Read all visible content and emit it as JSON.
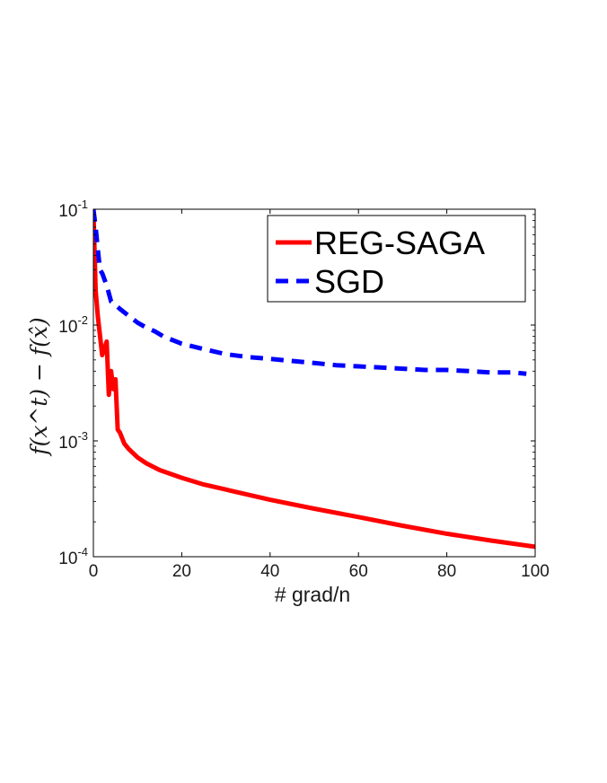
{
  "chart_data": {
    "type": "line",
    "title": "",
    "xlabel": "# grad/n",
    "ylabel": "f(x^t) − f(x̂)",
    "y_scale": "log",
    "xlim": [
      0,
      100
    ],
    "ylim": [
      0.0001,
      0.1
    ],
    "x_ticks": [
      "0",
      "20",
      "40",
      "60",
      "80",
      "100"
    ],
    "y_ticks": [
      {
        "base": "10",
        "exp": "-1",
        "value": 0.1
      },
      {
        "base": "10",
        "exp": "-2",
        "value": 0.01
      },
      {
        "base": "10",
        "exp": "-3",
        "value": 0.001
      },
      {
        "base": "10",
        "exp": "-4",
        "value": 0.0001
      }
    ],
    "grid": false,
    "legend_position": "top-right",
    "series": [
      {
        "name": "REG-SAGA",
        "color": "#ff0000",
        "style": "solid",
        "x": [
          0,
          0.5,
          1,
          2,
          3,
          3.5,
          4,
          4.5,
          5,
          5.5,
          6,
          7,
          8,
          10,
          12,
          15,
          20,
          25,
          30,
          40,
          50,
          60,
          70,
          80,
          90,
          100
        ],
        "y": [
          0.1,
          0.02,
          0.012,
          0.0055,
          0.0072,
          0.0025,
          0.004,
          0.0028,
          0.0034,
          0.00125,
          0.00118,
          0.00095,
          0.00085,
          0.00072,
          0.00064,
          0.00056,
          0.00048,
          0.00042,
          0.00038,
          0.00031,
          0.00026,
          0.00022,
          0.000185,
          0.000158,
          0.000138,
          0.000122
        ]
      },
      {
        "name": "SGD",
        "color": "#0000ff",
        "style": "dashed",
        "x": [
          0,
          0.5,
          1,
          1.5,
          2,
          3,
          4,
          5,
          6,
          8,
          10,
          12,
          14,
          16,
          18,
          20,
          25,
          30,
          35,
          40,
          45,
          50,
          55,
          60,
          65,
          70,
          75,
          80,
          85,
          90,
          95,
          98
        ],
        "y": [
          0.1,
          0.07,
          0.045,
          0.03,
          0.028,
          0.022,
          0.016,
          0.015,
          0.0138,
          0.012,
          0.0105,
          0.0095,
          0.0088,
          0.0079,
          0.0074,
          0.0069,
          0.0062,
          0.0056,
          0.0053,
          0.0051,
          0.0049,
          0.0047,
          0.0045,
          0.0044,
          0.0043,
          0.0042,
          0.0041,
          0.0041,
          0.004,
          0.0039,
          0.0039,
          0.0038
        ]
      }
    ]
  }
}
